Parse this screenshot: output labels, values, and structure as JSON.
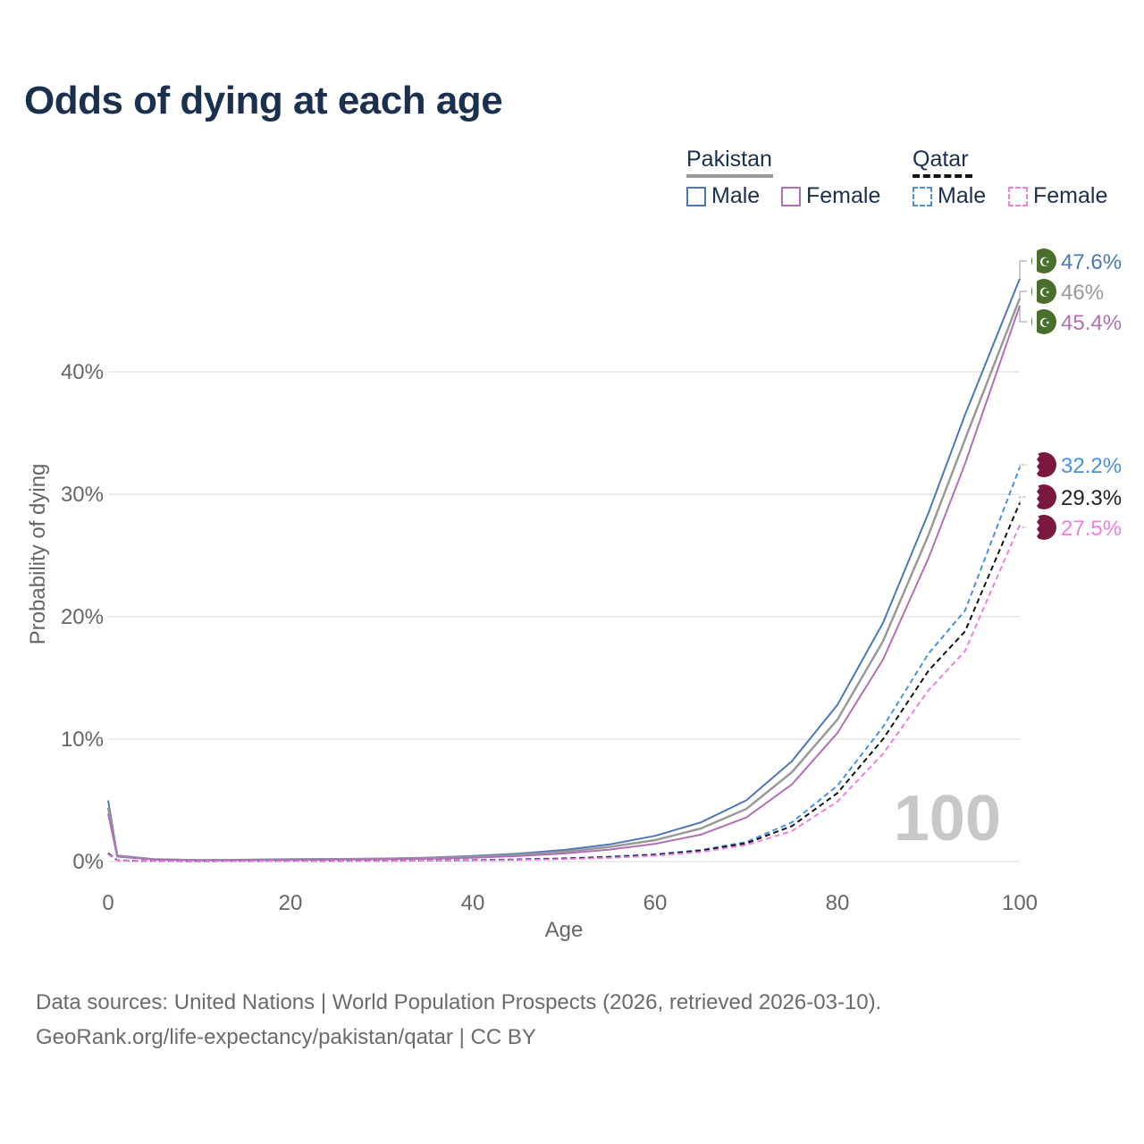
{
  "title": "Odds of dying at each age",
  "legend": {
    "groups": [
      {
        "name": "Pakistan",
        "items": [
          {
            "label": "Male",
            "color": "#4c77b8",
            "dashed": false
          },
          {
            "label": "Female",
            "color": "#b070b4",
            "dashed": false
          }
        ]
      },
      {
        "name": "Qatar",
        "items": [
          {
            "label": "Male",
            "color": "#4a8fe0",
            "dashed": true
          },
          {
            "label": "Female",
            "color": "#f07ee4",
            "dashed": true
          }
        ]
      }
    ]
  },
  "footer": {
    "line1": "Data sources: United Nations | World Population Prospects (2026, retrieved 2026-03-10).",
    "line2": "GeoRank.org/life-expectancy/pakistan/qatar | CC BY"
  },
  "chart_data": {
    "type": "line",
    "title": "Odds of dying at each age",
    "xlabel": "Age",
    "ylabel": "Probability of dying",
    "xlim": [
      0,
      100
    ],
    "ylim": [
      0,
      50
    ],
    "xticks": [
      0,
      20,
      40,
      60,
      80,
      100
    ],
    "xtick_labels": [
      "0",
      "20",
      "40",
      "60",
      "80",
      "100"
    ],
    "yticks": [
      0,
      10,
      20,
      30,
      40
    ],
    "ytick_labels": [
      "0%",
      "10%",
      "20%",
      "30%",
      "40%"
    ],
    "watermark": "100",
    "x": [
      0,
      1,
      5,
      10,
      15,
      20,
      25,
      30,
      35,
      40,
      45,
      50,
      55,
      60,
      65,
      70,
      75,
      80,
      85,
      90,
      94,
      100
    ],
    "series": [
      {
        "name": "Pakistan Male",
        "country": "Pakistan",
        "sex": "Male",
        "color": "#4c77b8",
        "dashed": false,
        "width": 2,
        "end_label": "47.6%",
        "values": [
          5.0,
          0.5,
          0.2,
          0.12,
          0.15,
          0.2,
          0.22,
          0.25,
          0.32,
          0.45,
          0.65,
          0.95,
          1.4,
          2.1,
          3.2,
          5.0,
          8.2,
          12.8,
          19.5,
          28.5,
          36.5,
          47.6
        ]
      },
      {
        "name": "Pakistan Total",
        "country": "Pakistan",
        "sex": "Both",
        "color": "#999999",
        "dashed": false,
        "width": 2.5,
        "end_label": "46%",
        "values": [
          4.4,
          0.45,
          0.18,
          0.11,
          0.13,
          0.17,
          0.19,
          0.22,
          0.28,
          0.38,
          0.55,
          0.8,
          1.2,
          1.75,
          2.7,
          4.3,
          7.3,
          11.6,
          18.0,
          26.7,
          34.5,
          46.0
        ]
      },
      {
        "name": "Pakistan Female",
        "country": "Pakistan",
        "sex": "Female",
        "color": "#b070b4",
        "dashed": false,
        "width": 2,
        "end_label": "45.4%",
        "values": [
          3.9,
          0.4,
          0.16,
          0.1,
          0.11,
          0.14,
          0.16,
          0.18,
          0.23,
          0.31,
          0.45,
          0.66,
          0.98,
          1.45,
          2.2,
          3.6,
          6.3,
          10.5,
          16.5,
          24.8,
          32.5,
          45.4
        ]
      },
      {
        "name": "Qatar Male",
        "country": "Qatar",
        "sex": "Male",
        "color": "#4a8fe0",
        "dashed": true,
        "width": 2,
        "end_label": "32.2%",
        "values": [
          0.7,
          0.1,
          0.04,
          0.03,
          0.04,
          0.05,
          0.06,
          0.07,
          0.09,
          0.12,
          0.18,
          0.27,
          0.4,
          0.6,
          0.95,
          1.6,
          3.2,
          6.2,
          11.0,
          17.0,
          20.5,
          32.2
        ]
      },
      {
        "name": "Qatar Total",
        "country": "Qatar",
        "sex": "Both",
        "color": "#111111",
        "dashed": true,
        "width": 2,
        "end_label": "29.3%",
        "values": [
          0.65,
          0.09,
          0.04,
          0.03,
          0.035,
          0.045,
          0.055,
          0.065,
          0.08,
          0.11,
          0.16,
          0.24,
          0.36,
          0.55,
          0.88,
          1.5,
          2.9,
          5.6,
          10.0,
          15.6,
          18.8,
          29.3
        ]
      },
      {
        "name": "Qatar Female",
        "country": "Qatar",
        "sex": "Female",
        "color": "#f07ee4",
        "dashed": true,
        "width": 2,
        "end_label": "27.5%",
        "values": [
          0.6,
          0.08,
          0.03,
          0.02,
          0.03,
          0.04,
          0.05,
          0.06,
          0.07,
          0.09,
          0.13,
          0.2,
          0.3,
          0.48,
          0.78,
          1.35,
          2.5,
          4.9,
          8.8,
          14.0,
          17.2,
          27.5
        ]
      }
    ],
    "end_markers": [
      {
        "country": "Pakistan",
        "flag_color": "#4a6e2c",
        "flag_symbol": "☪"
      },
      {
        "country": "Qatar",
        "flag_color": "#7a1840",
        "flag_symbol": ""
      }
    ]
  }
}
